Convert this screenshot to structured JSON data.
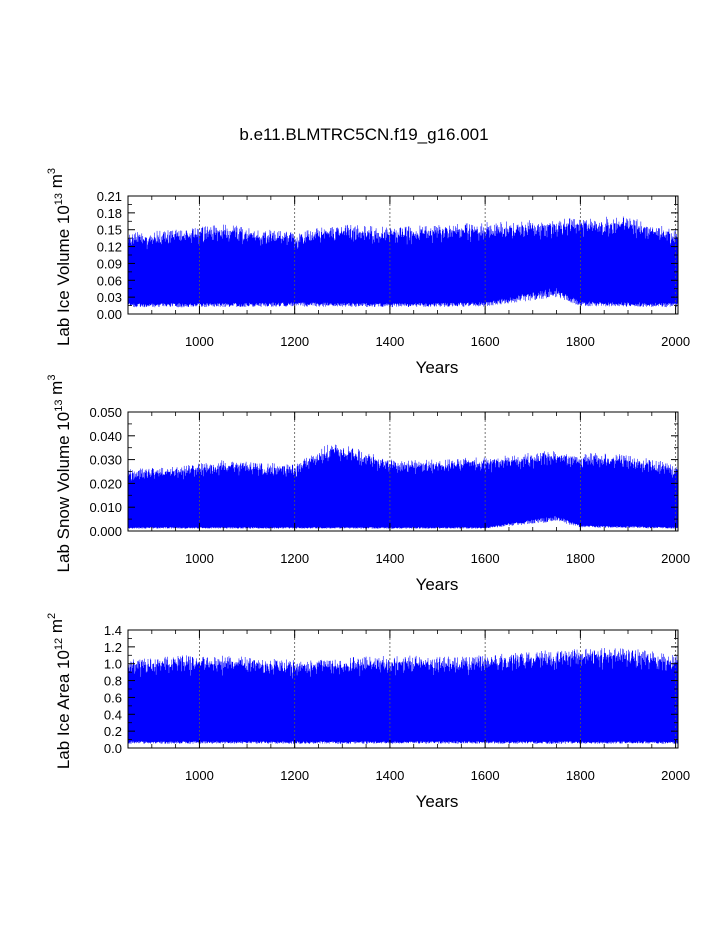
{
  "figure_title": "b.e11.BLMTRC5CN.f19_g16.001",
  "series_color": "#0000ff",
  "chart_data": [
    {
      "type": "line",
      "title": "",
      "xlabel": "Years",
      "ylabel": {
        "prefix": "Lab Ice Volume 10",
        "exp": "13",
        "unit": "m",
        "unit_exp": "3"
      },
      "xlim": [
        850,
        2005
      ],
      "ylim": [
        0.0,
        0.21
      ],
      "xticks": [
        1000,
        1200,
        1400,
        1600,
        1800,
        2000
      ],
      "yticks": [
        "0.00",
        "0.03",
        "0.06",
        "0.09",
        "0.12",
        "0.15",
        "0.18",
        "0.21"
      ],
      "x_gridlines": [
        1000,
        1200,
        1400,
        1600,
        1800,
        2000
      ],
      "series": [
        {
          "name": "Lab Ice Volume",
          "x_start": 850,
          "x_end": 2005,
          "annual_min": {
            "x": [
              850,
              1000,
              1200,
              1400,
              1600,
              1750,
              1800,
              2005
            ],
            "y": [
              0.012,
              0.012,
              0.013,
              0.012,
              0.013,
              0.03,
              0.014,
              0.012
            ]
          },
          "annual_max": {
            "x": [
              850,
              950,
              1050,
              1200,
              1290,
              1400,
              1500,
              1650,
              1890,
              2005
            ],
            "y": [
              0.145,
              0.15,
              0.16,
              0.145,
              0.16,
              0.155,
              0.16,
              0.165,
              0.175,
              0.15
            ]
          }
        }
      ]
    },
    {
      "type": "line",
      "title": "",
      "xlabel": "Years",
      "ylabel": {
        "prefix": "Lab Snow Volume 10",
        "exp": "13",
        "unit": "m",
        "unit_exp": "3"
      },
      "xlim": [
        850,
        2005
      ],
      "ylim": [
        0.0,
        0.05
      ],
      "xticks": [
        1000,
        1200,
        1400,
        1600,
        1800,
        2000
      ],
      "yticks": [
        "0.000",
        "0.010",
        "0.020",
        "0.030",
        "0.040",
        "0.050"
      ],
      "x_gridlines": [
        1000,
        1200,
        1400,
        1600,
        1800,
        2000
      ],
      "series": [
        {
          "name": "Lab Snow Volume",
          "x_start": 850,
          "x_end": 2005,
          "annual_min": {
            "x": [
              850,
              1000,
              1200,
              1400,
              1600,
              1750,
              1800,
              2005
            ],
            "y": [
              0.001,
              0.001,
              0.001,
              0.001,
              0.001,
              0.004,
              0.0015,
              0.001
            ]
          },
          "annual_max": {
            "x": [
              850,
              950,
              1050,
              1200,
              1280,
              1400,
              1500,
              1650,
              1750,
              1900,
              2005
            ],
            "y": [
              0.026,
              0.027,
              0.03,
              0.028,
              0.038,
              0.03,
              0.03,
              0.032,
              0.034,
              0.032,
              0.028
            ]
          }
        }
      ]
    },
    {
      "type": "line",
      "title": "",
      "xlabel": "Years",
      "ylabel": {
        "prefix": "Lab Ice Area 10",
        "exp": "12",
        "unit": "m",
        "unit_exp": "2"
      },
      "xlim": [
        850,
        2005
      ],
      "ylim": [
        0.0,
        1.4
      ],
      "xticks": [
        1000,
        1200,
        1400,
        1600,
        1800,
        2000
      ],
      "yticks": [
        "0.0",
        "0.2",
        "0.4",
        "0.6",
        "0.8",
        "1.0",
        "1.2",
        "1.4"
      ],
      "x_gridlines": [
        1000,
        1200,
        1400,
        1600,
        1800,
        2000
      ],
      "series": [
        {
          "name": "Lab Ice Area",
          "x_start": 850,
          "x_end": 2005,
          "annual_min": {
            "x": [
              850,
              1000,
              1200,
              1400,
              1600,
              1800,
              2005
            ],
            "y": [
              0.05,
              0.05,
              0.05,
              0.05,
              0.05,
              0.05,
              0.05
            ]
          },
          "annual_max": {
            "x": [
              850,
              950,
              1050,
              1200,
              1400,
              1600,
              1700,
              1890,
              2005
            ],
            "y": [
              1.05,
              1.1,
              1.1,
              1.05,
              1.1,
              1.1,
              1.15,
              1.2,
              1.1
            ]
          }
        }
      ]
    }
  ]
}
